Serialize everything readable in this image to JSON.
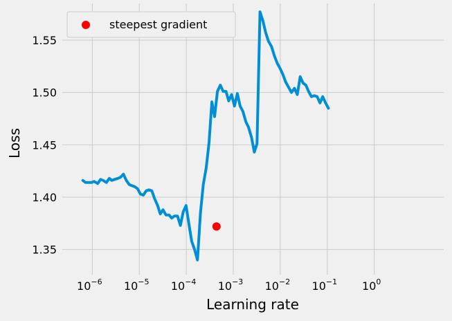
{
  "chart_data": {
    "type": "line",
    "title": "",
    "xlabel": "Learning rate",
    "ylabel": "Loss",
    "xscale": "log",
    "xlim": [
      2.3e-07,
      30
    ],
    "ylim": [
      1.326,
      1.585
    ],
    "grid": true,
    "legend": {
      "position": "top-left",
      "entries": [
        "steepest gradient"
      ]
    },
    "x_ticks": [
      {
        "value": 1e-06,
        "base": "10",
        "exp": "−6"
      },
      {
        "value": 1e-05,
        "base": "10",
        "exp": "−5"
      },
      {
        "value": 0.0001,
        "base": "10",
        "exp": "−4"
      },
      {
        "value": 0.001,
        "base": "10",
        "exp": "−3"
      },
      {
        "value": 0.01,
        "base": "10",
        "exp": "−2"
      },
      {
        "value": 0.1,
        "base": "10",
        "exp": "−1"
      },
      {
        "value": 1,
        "base": "10",
        "exp": "0"
      }
    ],
    "y_ticks": [
      {
        "value": 1.35,
        "label": "1.35"
      },
      {
        "value": 1.4,
        "label": "1.40"
      },
      {
        "value": 1.45,
        "label": "1.45"
      },
      {
        "value": 1.5,
        "label": "1.50"
      },
      {
        "value": 1.55,
        "label": "1.55"
      }
    ],
    "series": [
      {
        "color": "#008fd5",
        "points": [
          [
            6.3e-07,
            1.416
          ],
          [
            7.2e-07,
            1.414
          ],
          [
            8.3e-07,
            1.414
          ],
          [
            9.6e-07,
            1.414
          ],
          [
            1.1e-06,
            1.415
          ],
          [
            1.3e-06,
            1.413
          ],
          [
            1.5e-06,
            1.417
          ],
          [
            1.7e-06,
            1.416
          ],
          [
            2e-06,
            1.414
          ],
          [
            2.3e-06,
            1.418
          ],
          [
            2.6e-06,
            1.416
          ],
          [
            3e-06,
            1.417
          ],
          [
            3.5e-06,
            1.418
          ],
          [
            4e-06,
            1.419
          ],
          [
            4.6e-06,
            1.422
          ],
          [
            5.3e-06,
            1.416
          ],
          [
            6.1e-06,
            1.412
          ],
          [
            7e-06,
            1.411
          ],
          [
            8e-06,
            1.41
          ],
          [
            9.2e-06,
            1.408
          ],
          [
            1.06e-05,
            1.403
          ],
          [
            1.22e-05,
            1.402
          ],
          [
            1.4e-05,
            1.406
          ],
          [
            1.6e-05,
            1.407
          ],
          [
            1.85e-05,
            1.406
          ],
          [
            2.1e-05,
            1.399
          ],
          [
            2.45e-05,
            1.392
          ],
          [
            2.8e-05,
            1.384
          ],
          [
            3.2e-05,
            1.388
          ],
          [
            3.7e-05,
            1.383
          ],
          [
            4.3e-05,
            1.383
          ],
          [
            4.9e-05,
            1.38
          ],
          [
            5.6e-05,
            1.382
          ],
          [
            6.5e-05,
            1.382
          ],
          [
            7.5e-05,
            1.373
          ],
          [
            8.6e-05,
            1.386
          ],
          [
            9.9e-05,
            1.392
          ],
          [
            0.000114,
            1.374
          ],
          [
            0.00013,
            1.358
          ],
          [
            0.00015,
            1.35
          ],
          [
            0.000173,
            1.34
          ],
          [
            0.0002,
            1.385
          ],
          [
            0.00023,
            1.412
          ],
          [
            0.000265,
            1.428
          ],
          [
            0.000305,
            1.452
          ],
          [
            0.00035,
            1.491
          ],
          [
            0.0004,
            1.477
          ],
          [
            0.00046,
            1.501
          ],
          [
            0.00053,
            1.507
          ],
          [
            0.00061,
            1.501
          ],
          [
            0.0007,
            1.501
          ],
          [
            0.0008,
            1.492
          ],
          [
            0.00092,
            1.498
          ],
          [
            0.00106,
            1.487
          ],
          [
            0.00122,
            1.499
          ],
          [
            0.0014,
            1.487
          ],
          [
            0.0016,
            1.482
          ],
          [
            0.00185,
            1.472
          ],
          [
            0.0021,
            1.467
          ],
          [
            0.00245,
            1.457
          ],
          [
            0.0028,
            1.443
          ],
          [
            0.0032,
            1.451
          ],
          [
            0.0037,
            1.577
          ],
          [
            0.0043,
            1.568
          ],
          [
            0.0049,
            1.557
          ],
          [
            0.0056,
            1.549
          ],
          [
            0.0065,
            1.544
          ],
          [
            0.0075,
            1.535
          ],
          [
            0.0086,
            1.528
          ],
          [
            0.0099,
            1.523
          ],
          [
            0.0114,
            1.517
          ],
          [
            0.013,
            1.51
          ],
          [
            0.015,
            1.505
          ],
          [
            0.0173,
            1.5
          ],
          [
            0.02,
            1.504
          ],
          [
            0.023,
            1.498
          ],
          [
            0.0265,
            1.515
          ],
          [
            0.0305,
            1.509
          ],
          [
            0.035,
            1.507
          ],
          [
            0.04,
            1.501
          ],
          [
            0.046,
            1.496
          ],
          [
            0.053,
            1.497
          ],
          [
            0.061,
            1.496
          ],
          [
            0.07,
            1.49
          ],
          [
            0.08,
            1.496
          ],
          [
            0.092,
            1.49
          ],
          [
            0.106,
            1.485
          ]
        ]
      }
    ],
    "marker": {
      "x": 0.00044,
      "y": 1.372,
      "color": "#ff0000",
      "label": "steepest gradient"
    }
  }
}
